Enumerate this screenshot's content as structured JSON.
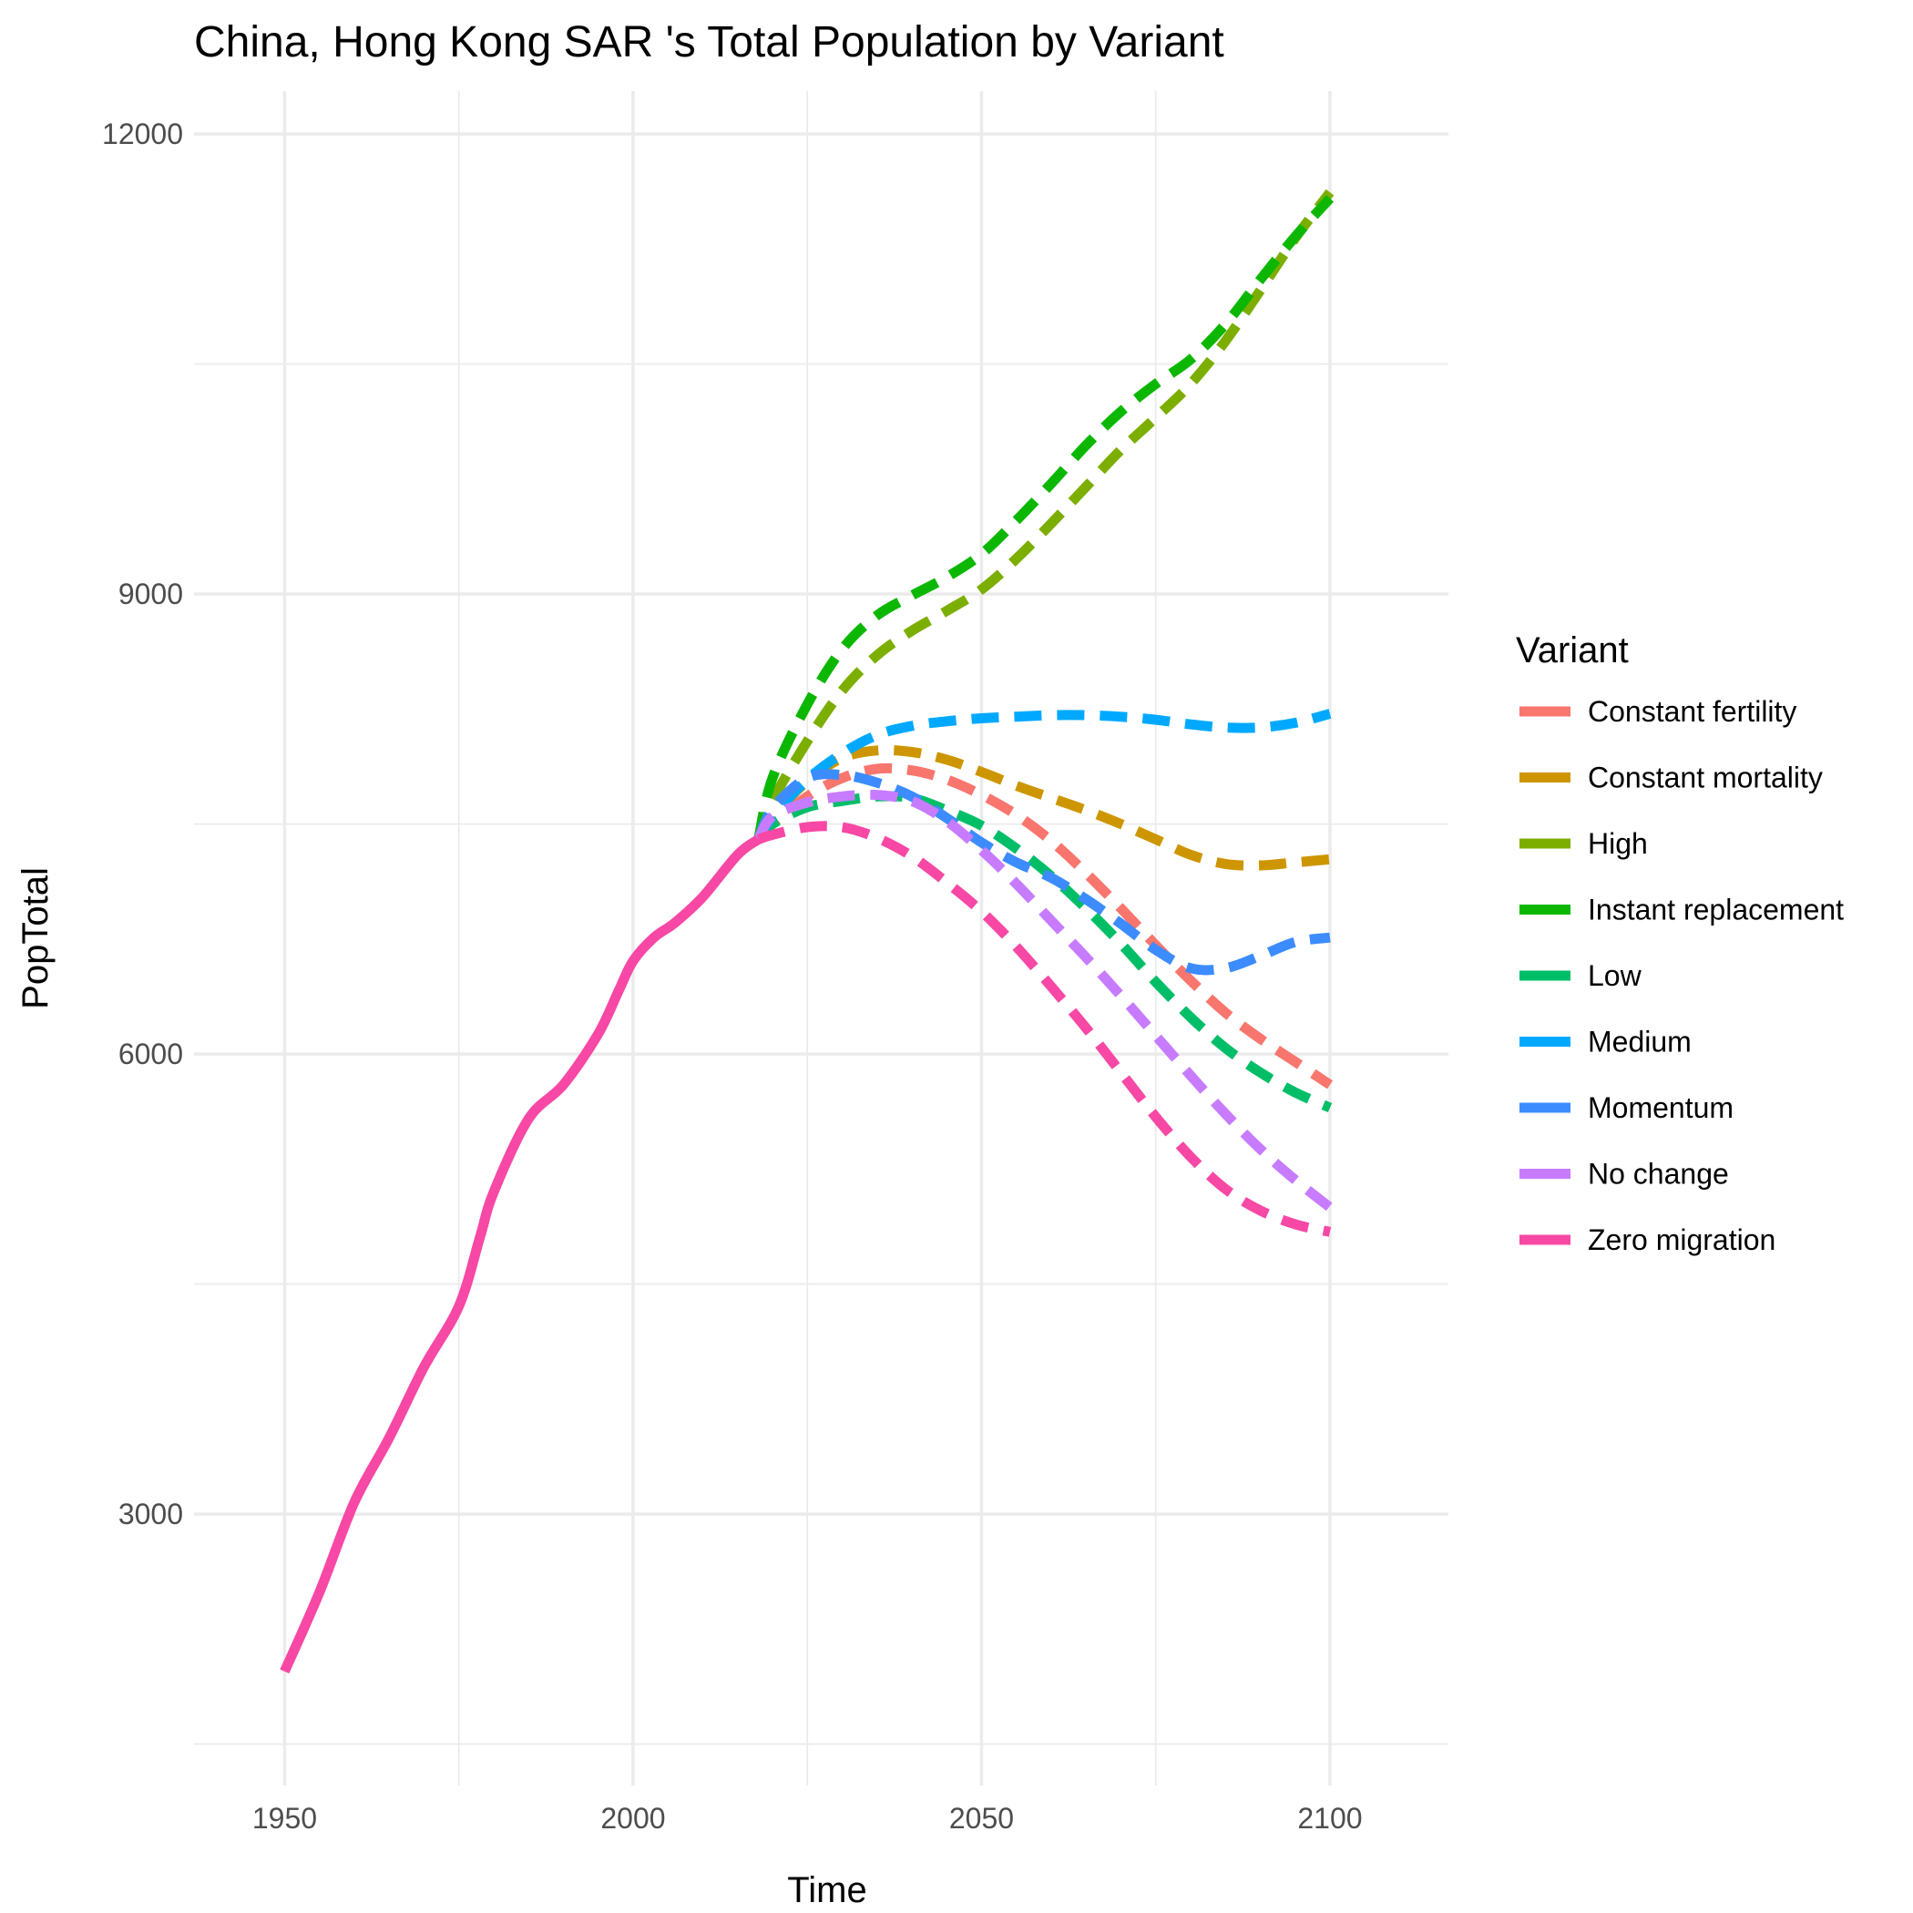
{
  "chart_data": {
    "type": "line",
    "title": "China, Hong Kong SAR 's Total Population by Variant",
    "xlabel": "Time",
    "ylabel": "PopTotal",
    "xlim": [
      1937,
      2117
    ],
    "ylim": [
      1230,
      12280
    ],
    "x_ticks": [
      1950,
      2000,
      2050,
      2100
    ],
    "x_tick_labels": [
      "1950",
      "2000",
      "2050",
      "2100"
    ],
    "x_minor_ticks": [
      1975,
      2025,
      2075
    ],
    "y_ticks": [
      3000,
      6000,
      9000,
      12000
    ],
    "y_tick_labels": [
      "3000",
      "6000",
      "9000",
      "12000"
    ],
    "y_minor_ticks": [
      1500,
      4500,
      7500,
      10500
    ],
    "grid": true,
    "legend": {
      "title": "Variant",
      "position": "right"
    },
    "historical": {
      "variant": "Zero migration",
      "x": [
        1950,
        1955,
        1960,
        1965,
        1970,
        1975,
        1978,
        1980,
        1985,
        1990,
        1995,
        1998,
        2000,
        2003,
        2006,
        2010,
        2015,
        2018
      ],
      "y": [
        1974,
        2490,
        3076,
        3497,
        3959,
        4355,
        4800,
        5100,
        5577,
        5800,
        6132,
        6420,
        6607,
        6760,
        6856,
        7025,
        7300,
        7400
      ]
    },
    "series": [
      {
        "name": "Constant fertility",
        "color": "#F8766D",
        "x": [
          2018,
          2020,
          2025,
          2030,
          2035,
          2040,
          2045,
          2050,
          2055,
          2060,
          2065,
          2070,
          2075,
          2080,
          2085,
          2090,
          2095,
          2100
        ],
        "y": [
          7400,
          7500,
          7680,
          7800,
          7860,
          7850,
          7790,
          7690,
          7560,
          7390,
          7180,
          6950,
          6710,
          6480,
          6270,
          6100,
          5950,
          5800
        ]
      },
      {
        "name": "Constant mortality",
        "color": "#CD9600",
        "x": [
          2018,
          2020,
          2025,
          2030,
          2035,
          2040,
          2045,
          2050,
          2055,
          2060,
          2065,
          2070,
          2075,
          2080,
          2085,
          2090,
          2095,
          2100
        ],
        "y": [
          7400,
          7550,
          7780,
          7930,
          7980,
          7970,
          7920,
          7840,
          7750,
          7670,
          7590,
          7500,
          7400,
          7300,
          7240,
          7230,
          7250,
          7270
        ]
      },
      {
        "name": "High",
        "color": "#7CAE00",
        "x": [
          2018,
          2020,
          2025,
          2030,
          2035,
          2040,
          2045,
          2050,
          2055,
          2060,
          2065,
          2070,
          2075,
          2080,
          2085,
          2090,
          2095,
          2100
        ],
        "y": [
          7400,
          7650,
          8040,
          8370,
          8600,
          8760,
          8890,
          9030,
          9230,
          9460,
          9700,
          9940,
          10150,
          10370,
          10650,
          10980,
          11320,
          11620
        ]
      },
      {
        "name": "Instant replacement",
        "color": "#0CB702",
        "x": [
          2018,
          2020,
          2025,
          2030,
          2035,
          2040,
          2045,
          2050,
          2055,
          2060,
          2065,
          2070,
          2075,
          2080,
          2085,
          2090,
          2095,
          2100
        ],
        "y": [
          7400,
          7800,
          8280,
          8640,
          8860,
          8990,
          9110,
          9260,
          9480,
          9720,
          9970,
          10190,
          10370,
          10530,
          10760,
          11050,
          11330,
          11580
        ]
      },
      {
        "name": "Low",
        "color": "#00BE67",
        "x": [
          2018,
          2020,
          2025,
          2030,
          2035,
          2040,
          2045,
          2050,
          2055,
          2060,
          2065,
          2070,
          2075,
          2080,
          2085,
          2090,
          2095,
          2100
        ],
        "y": [
          7400,
          7500,
          7610,
          7650,
          7680,
          7670,
          7590,
          7490,
          7340,
          7160,
          6950,
          6720,
          6470,
          6240,
          6040,
          5880,
          5750,
          5650
        ]
      },
      {
        "name": "Medium",
        "color": "#00A9FF",
        "x": [
          2018,
          2020,
          2025,
          2030,
          2035,
          2040,
          2045,
          2050,
          2055,
          2060,
          2065,
          2070,
          2075,
          2080,
          2085,
          2090,
          2095,
          2100
        ],
        "y": [
          7400,
          7550,
          7790,
          7960,
          8080,
          8140,
          8170,
          8190,
          8200,
          8210,
          8210,
          8200,
          8180,
          8150,
          8130,
          8130,
          8160,
          8220
        ]
      },
      {
        "name": "Momentum",
        "color": "#3C8CFF",
        "x": [
          2018,
          2020,
          2025,
          2030,
          2035,
          2040,
          2045,
          2050,
          2055,
          2060,
          2065,
          2070,
          2075,
          2080,
          2085,
          2090,
          2095,
          2100
        ],
        "y": [
          7400,
          7600,
          7800,
          7820,
          7770,
          7680,
          7540,
          7380,
          7250,
          7150,
          7010,
          6850,
          6680,
          6560,
          6560,
          6640,
          6730,
          6760
        ]
      },
      {
        "name": "No change",
        "color": "#C77CFF",
        "x": [
          2018,
          2020,
          2025,
          2030,
          2035,
          2040,
          2045,
          2050,
          2055,
          2060,
          2065,
          2070,
          2075,
          2080,
          2085,
          2090,
          2095,
          2100
        ],
        "y": [
          7400,
          7550,
          7640,
          7680,
          7690,
          7650,
          7520,
          7330,
          7110,
          6870,
          6630,
          6380,
          6120,
          5860,
          5610,
          5380,
          5180,
          5000
        ]
      },
      {
        "name": "Zero migration",
        "color": "#F748A5",
        "x": [
          2018,
          2020,
          2025,
          2030,
          2035,
          2040,
          2045,
          2050,
          2055,
          2060,
          2065,
          2070,
          2075,
          2080,
          2085,
          2090,
          2095,
          2100
        ],
        "y": [
          7400,
          7430,
          7480,
          7480,
          7410,
          7290,
          7120,
          6930,
          6700,
          6440,
          6170,
          5880,
          5590,
          5330,
          5120,
          4980,
          4890,
          4840
        ]
      }
    ]
  }
}
